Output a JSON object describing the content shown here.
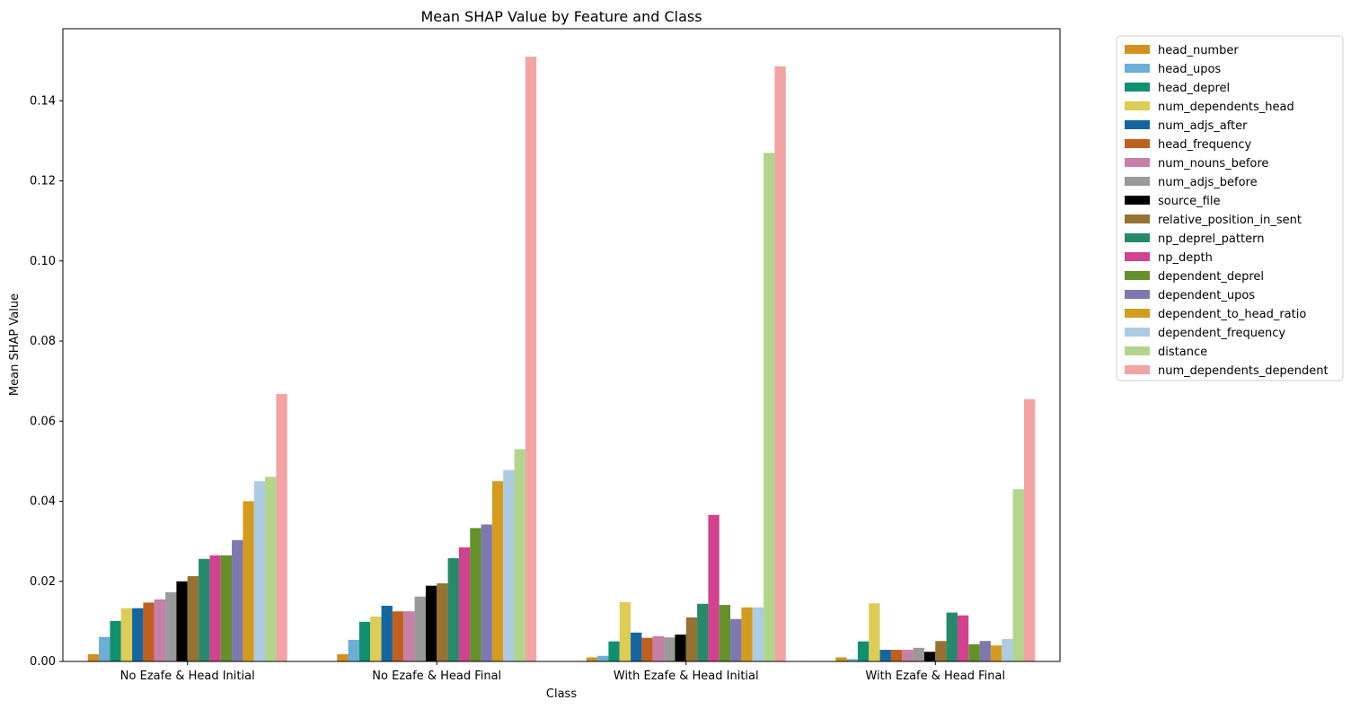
{
  "chart_data": {
    "type": "bar",
    "title": "Mean SHAP Value by Feature and Class",
    "xlabel": "Class",
    "ylabel": "Mean SHAP Value",
    "ylim": [
      0,
      0.158
    ],
    "yticks": [
      0.0,
      0.02,
      0.04,
      0.06,
      0.08,
      0.1,
      0.12,
      0.14
    ],
    "ytick_labels": [
      "0.00",
      "0.02",
      "0.04",
      "0.06",
      "0.08",
      "0.10",
      "0.12",
      "0.14"
    ],
    "grid": false,
    "legend_position": "outside-right",
    "categories": [
      "No Ezafe & Head Initial",
      "No Ezafe & Head Final",
      "With Ezafe & Head Initial",
      "With Ezafe & Head Final"
    ],
    "series": [
      {
        "name": "head_number",
        "color": "#D4901C",
        "values": [
          0.0018,
          0.0018,
          0.001,
          0.001
        ]
      },
      {
        "name": "head_upos",
        "color": "#6BAED6",
        "values": [
          0.0061,
          0.0054,
          0.0014,
          0.0006
        ]
      },
      {
        "name": "head_deprel",
        "color": "#119070",
        "values": [
          0.0101,
          0.0099,
          0.005,
          0.005
        ]
      },
      {
        "name": "num_dependents_head",
        "color": "#DDCC55",
        "values": [
          0.0133,
          0.0112,
          0.0148,
          0.0145
        ]
      },
      {
        "name": "num_adjs_after",
        "color": "#1566A0",
        "values": [
          0.0133,
          0.0139,
          0.0072,
          0.0029
        ]
      },
      {
        "name": "head_frequency",
        "color": "#C0601F",
        "values": [
          0.0147,
          0.0125,
          0.0059,
          0.0029
        ]
      },
      {
        "name": "num_nouns_before",
        "color": "#C67FA6",
        "values": [
          0.0155,
          0.0125,
          0.0063,
          0.0029
        ]
      },
      {
        "name": "num_adjs_before",
        "color": "#999999",
        "values": [
          0.0173,
          0.0162,
          0.006,
          0.0034
        ]
      },
      {
        "name": "source_file",
        "color": "#000000",
        "values": [
          0.02,
          0.0189,
          0.0067,
          0.0024
        ]
      },
      {
        "name": "relative_position_in_sent",
        "color": "#977132",
        "values": [
          0.0213,
          0.0195,
          0.011,
          0.0051
        ]
      },
      {
        "name": "np_deprel_pattern",
        "color": "#268A6A",
        "values": [
          0.0256,
          0.0258,
          0.0144,
          0.0122
        ]
      },
      {
        "name": "np_depth",
        "color": "#D1438E",
        "values": [
          0.0265,
          0.0285,
          0.0366,
          0.0115
        ]
      },
      {
        "name": "dependent_deprel",
        "color": "#64912A",
        "values": [
          0.0265,
          0.0333,
          0.0141,
          0.0043
        ]
      },
      {
        "name": "dependent_upos",
        "color": "#7E78B0",
        "values": [
          0.0303,
          0.0342,
          0.0106,
          0.0051
        ]
      },
      {
        "name": "dependent_to_head_ratio",
        "color": "#D39C1F",
        "values": [
          0.04,
          0.045,
          0.0135,
          0.004
        ]
      },
      {
        "name": "dependent_frequency",
        "color": "#ADCBE3",
        "values": [
          0.045,
          0.0478,
          0.0135,
          0.0056
        ]
      },
      {
        "name": "distance",
        "color": "#B2D58C",
        "values": [
          0.0461,
          0.053,
          0.127,
          0.043
        ]
      },
      {
        "name": "num_dependents_dependent",
        "color": "#F2A3A3",
        "values": [
          0.0668,
          0.151,
          0.1486,
          0.0655
        ]
      }
    ]
  }
}
